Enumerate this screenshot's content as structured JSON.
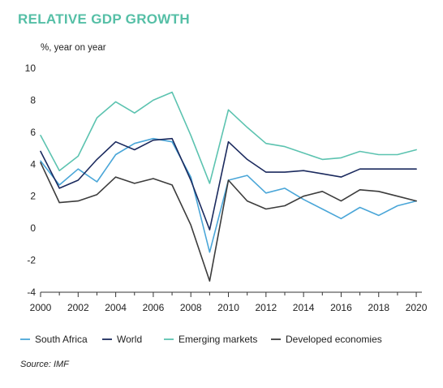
{
  "header": {
    "title": "RELATIVE GDP GROWTH"
  },
  "footer": {
    "source": "Source: IMF"
  },
  "colors": {
    "title": "#55bfa6",
    "axis": "#333333"
  },
  "chart_data": {
    "type": "line",
    "title": "RELATIVE GDP GROWTH",
    "ylabel": "%, year on year",
    "xlabel": "",
    "xlim": [
      2000,
      2020.3
    ],
    "ylim": [
      -4,
      10
    ],
    "x_ticks": [
      2000,
      2002,
      2004,
      2006,
      2008,
      2010,
      2012,
      2014,
      2016,
      2018,
      2020
    ],
    "y_ticks": [
      -4,
      -2,
      0,
      2,
      4,
      6,
      8,
      10
    ],
    "grid": false,
    "legend": "bottom",
    "x": [
      2000,
      2001,
      2002,
      2003,
      2004,
      2005,
      2006,
      2007,
      2008,
      2009,
      2010,
      2011,
      2012,
      2013,
      2014,
      2015,
      2016,
      2017,
      2018,
      2019,
      2020
    ],
    "series": [
      {
        "name": "South Africa",
        "color": "#4aa6d8",
        "values": [
          4.2,
          2.7,
          3.7,
          2.9,
          4.6,
          5.3,
          5.6,
          5.4,
          3.2,
          -1.5,
          3.0,
          3.3,
          2.2,
          2.5,
          1.8,
          1.2,
          0.6,
          1.3,
          0.8,
          1.4,
          1.7
        ]
      },
      {
        "name": "World",
        "color": "#1b2a5e",
        "values": [
          4.8,
          2.5,
          3.0,
          4.3,
          5.4,
          4.9,
          5.5,
          5.6,
          3.0,
          -0.1,
          5.4,
          4.3,
          3.5,
          3.5,
          3.6,
          3.4,
          3.2,
          3.7,
          3.7,
          3.7,
          3.7
        ]
      },
      {
        "name": "Emerging markets",
        "color": "#5cc3b0",
        "values": [
          5.8,
          3.6,
          4.5,
          6.9,
          7.9,
          7.2,
          8.0,
          8.5,
          5.8,
          2.8,
          7.4,
          6.3,
          5.3,
          5.1,
          4.7,
          4.3,
          4.4,
          4.8,
          4.6,
          4.6,
          4.9
        ]
      },
      {
        "name": "Developed economies",
        "color": "#3c3c3c",
        "values": [
          4.1,
          1.6,
          1.7,
          2.1,
          3.2,
          2.8,
          3.1,
          2.7,
          0.2,
          -3.3,
          3.0,
          1.7,
          1.2,
          1.4,
          2.0,
          2.3,
          1.7,
          2.4,
          2.3,
          2.0,
          1.7
        ]
      }
    ]
  }
}
